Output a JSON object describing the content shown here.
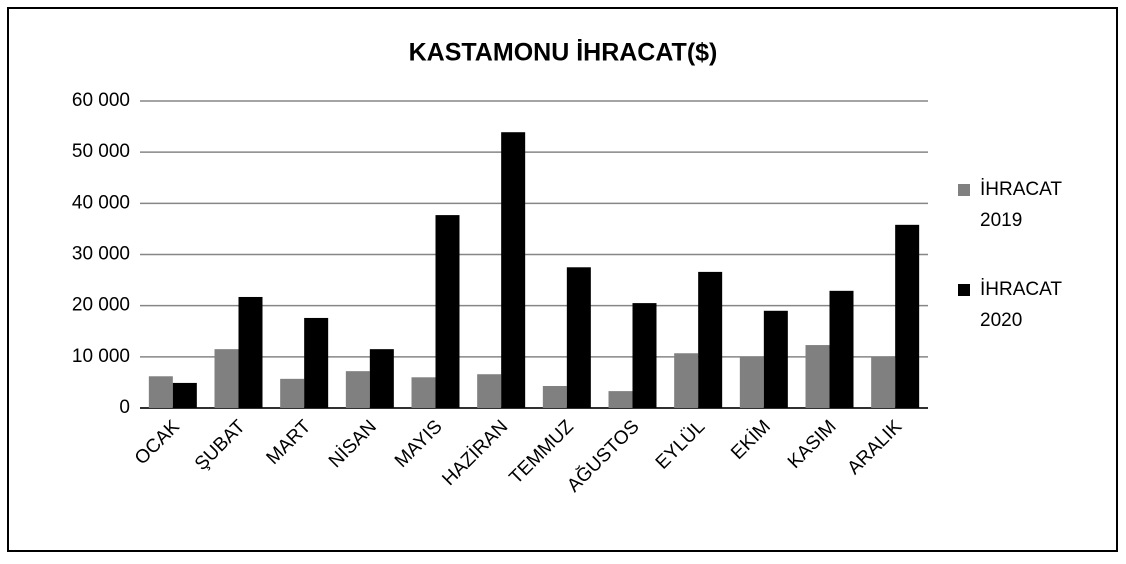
{
  "chart_data": {
    "type": "bar",
    "title": "KASTAMONU İHRACAT($)",
    "categories": [
      "OCAK",
      "ŞUBAT",
      "MART",
      "NİSAN",
      "MAYIS",
      "HAZİRAN",
      "TEMMUZ",
      "AĞUSTOS",
      "EYLÜL",
      "EKİM",
      "KASIM",
      "ARALIK"
    ],
    "series": [
      {
        "name": "İHRACAT 2019",
        "color": "#808080",
        "values": [
          6200,
          11500,
          5700,
          7200,
          6000,
          6600,
          4300,
          3300,
          10700,
          10000,
          12300,
          10000
        ]
      },
      {
        "name": "İHRACAT 2020",
        "color": "#000000",
        "values": [
          4900,
          21700,
          17600,
          11500,
          37700,
          53900,
          27500,
          20500,
          26600,
          19000,
          22900,
          35800
        ]
      }
    ],
    "ylim": [
      0,
      60000
    ],
    "yticks": [
      0,
      {
        "value": 10000,
        "label": "10 000"
      },
      {
        "value": 20000,
        "label": "20 000"
      },
      {
        "value": 30000,
        "label": "30 000"
      },
      {
        "value": 40000,
        "label": "40 000"
      },
      {
        "value": 50000,
        "label": "50 000"
      },
      {
        "value": 60000,
        "label": "60 000"
      }
    ],
    "grid": true,
    "legend": "right"
  }
}
